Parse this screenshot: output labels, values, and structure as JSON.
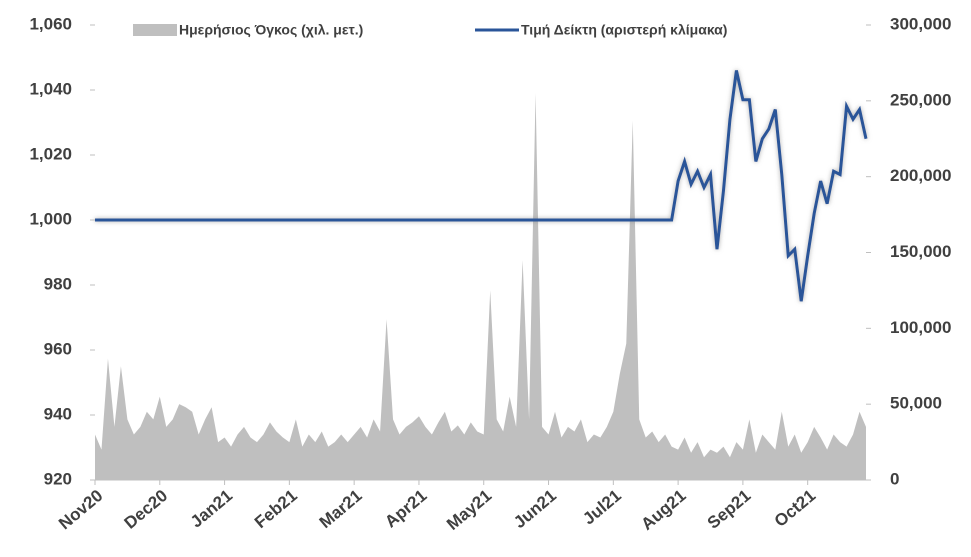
{
  "chart_data": {
    "type": "line-area",
    "categories": [
      "Nov20",
      null,
      null,
      null,
      null,
      null,
      null,
      null,
      null,
      null,
      "Dec20",
      null,
      null,
      null,
      null,
      null,
      null,
      null,
      null,
      null,
      "Jan21",
      null,
      null,
      null,
      null,
      null,
      null,
      null,
      null,
      null,
      "Feb21",
      null,
      null,
      null,
      null,
      null,
      null,
      null,
      null,
      null,
      "Mar21",
      null,
      null,
      null,
      null,
      null,
      null,
      null,
      null,
      null,
      "Apr21",
      null,
      null,
      null,
      null,
      null,
      null,
      null,
      null,
      null,
      "May21",
      null,
      null,
      null,
      null,
      null,
      null,
      null,
      null,
      null,
      "Jun21",
      null,
      null,
      null,
      null,
      null,
      null,
      null,
      null,
      null,
      "Jul21",
      null,
      null,
      null,
      null,
      null,
      null,
      null,
      null,
      null,
      "Aug21",
      null,
      null,
      null,
      null,
      null,
      null,
      null,
      null,
      null,
      "Sep21",
      null,
      null,
      null,
      null,
      null,
      null,
      null,
      null,
      null,
      "Oct21",
      null,
      null,
      null,
      null,
      null,
      null,
      null,
      null,
      null
    ],
    "series": [
      {
        "name": "Ημερήσιος Όγκος (χιλ. μετ.)",
        "color": "#bfbfbf",
        "axis": "y2",
        "kind": "area",
        "values": [
          30000,
          20000,
          80000,
          35000,
          75000,
          40000,
          30000,
          35000,
          45000,
          40000,
          55000,
          35000,
          40000,
          50000,
          48000,
          45000,
          30000,
          40000,
          48000,
          25000,
          28000,
          22000,
          30000,
          35000,
          28000,
          25000,
          30000,
          38000,
          32000,
          28000,
          25000,
          40000,
          22000,
          30000,
          25000,
          32000,
          22000,
          25000,
          30000,
          25000,
          30000,
          35000,
          28000,
          40000,
          32000,
          106000,
          40000,
          30000,
          35000,
          38000,
          42000,
          35000,
          30000,
          38000,
          45000,
          32000,
          36000,
          30000,
          38000,
          32000,
          30000,
          125000,
          40000,
          32000,
          55000,
          35000,
          145000,
          40000,
          255000,
          35000,
          30000,
          45000,
          28000,
          35000,
          32000,
          40000,
          25000,
          30000,
          28000,
          35000,
          45000,
          70000,
          90000,
          237000,
          40000,
          28000,
          32000,
          25000,
          30000,
          22000,
          20000,
          28000,
          18000,
          25000,
          15000,
          20000,
          18000,
          22000,
          15000,
          25000,
          20000,
          40000,
          18000,
          30000,
          25000,
          20000,
          45000,
          22000,
          30000,
          18000,
          25000,
          35000,
          28000,
          20000,
          30000,
          25000,
          22000,
          30000,
          45000,
          35000
        ]
      },
      {
        "name": "Τιμή Δείκτη (αριστερή κλίμακα)",
        "color": "#2a5599",
        "axis": "y",
        "kind": "line",
        "values": [
          1000,
          1000,
          1000,
          1000,
          1000,
          1000,
          1000,
          1000,
          1000,
          1000,
          1000,
          1000,
          1000,
          1000,
          1000,
          1000,
          1000,
          1000,
          1000,
          1000,
          1000,
          1000,
          1000,
          1000,
          1000,
          1000,
          1000,
          1000,
          1000,
          1000,
          1000,
          1000,
          1000,
          1000,
          1000,
          1000,
          1000,
          1000,
          1000,
          1000,
          1000,
          1000,
          1000,
          1000,
          1000,
          1000,
          1000,
          1000,
          1000,
          1000,
          1000,
          1000,
          1000,
          1000,
          1000,
          1000,
          1000,
          1000,
          1000,
          1000,
          1000,
          1000,
          1000,
          1000,
          1000,
          1000,
          1000,
          1000,
          1000,
          1000,
          1000,
          1000,
          1000,
          1000,
          1000,
          1000,
          1000,
          1000,
          1000,
          1000,
          1000,
          1000,
          1000,
          1000,
          1000,
          1000,
          1000,
          1000,
          1000,
          1000,
          1012,
          1018,
          1011,
          1015,
          1010,
          1014,
          991,
          1009,
          1031,
          1046,
          1037,
          1037,
          1018,
          1025,
          1028,
          1034,
          1014,
          989,
          991,
          975,
          989,
          1002,
          1012,
          1005,
          1015,
          1014,
          1035,
          1031,
          1034,
          1025
        ]
      }
    ],
    "ylim": [
      920,
      1060
    ],
    "yticks": [
      920,
      940,
      960,
      980,
      {
        "value": 1000,
        "label": "1,000"
      },
      {
        "value": 1020,
        "label": "1,020"
      },
      {
        "value": 1040,
        "label": "1,040"
      },
      {
        "value": 1060,
        "label": "1,060"
      }
    ],
    "y2lim": [
      0,
      300000
    ],
    "y2ticks": [
      0,
      {
        "value": 50000,
        "label": "50,000"
      },
      {
        "value": 100000,
        "label": "100,000"
      },
      {
        "value": 150000,
        "label": "150,000"
      },
      {
        "value": 200000,
        "label": "200,000"
      },
      {
        "value": 250000,
        "label": "250,000"
      },
      {
        "value": 300000,
        "label": "300,000"
      }
    ],
    "legend": "top"
  }
}
